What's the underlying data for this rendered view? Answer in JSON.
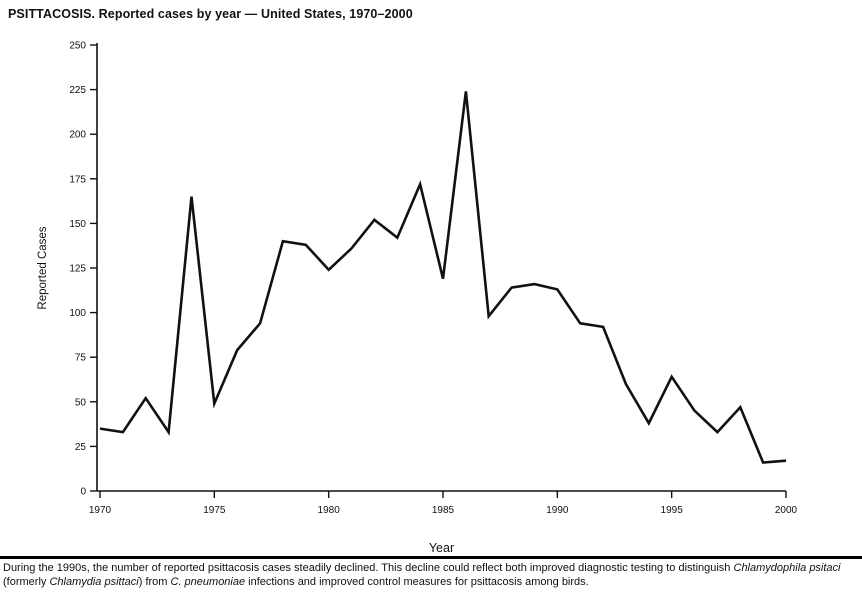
{
  "page": {
    "title": "PSITTACOSIS. Reported cases by year — United States, 1970–2000"
  },
  "chart_data": {
    "type": "line",
    "title": "PSITTACOSIS. Reported cases by year — United States, 1970–2000",
    "xlabel": "Year",
    "ylabel": "Reported Cases",
    "x": [
      1970,
      1971,
      1972,
      1973,
      1974,
      1975,
      1976,
      1977,
      1978,
      1979,
      1980,
      1981,
      1982,
      1983,
      1984,
      1985,
      1986,
      1987,
      1988,
      1989,
      1990,
      1991,
      1992,
      1993,
      1994,
      1995,
      1996,
      1997,
      1998,
      1999,
      2000
    ],
    "values": [
      35,
      33,
      52,
      33,
      165,
      49,
      79,
      94,
      140,
      138,
      124,
      136,
      152,
      142,
      172,
      119,
      224,
      98,
      114,
      116,
      113,
      94,
      92,
      60,
      38,
      64,
      45,
      33,
      47,
      16,
      17
    ],
    "ylim": [
      0,
      250
    ],
    "ytick_interval": 25,
    "yticks": [
      0,
      25,
      50,
      75,
      100,
      125,
      150,
      175,
      200,
      225,
      250
    ],
    "xticks": [
      1970,
      1975,
      1980,
      1985,
      1990,
      1995,
      2000
    ],
    "grid": false,
    "legend": false,
    "line_color": "#111111",
    "axis_color": "#111111"
  },
  "caption": {
    "segments": [
      {
        "text": "During the 1990s, the number of reported psittacosis cases steadily declined. This decline could reflect both improved diagnostic testing to distinguish ",
        "italic": false
      },
      {
        "text": "Chlamydophila psitaci",
        "italic": true
      },
      {
        "text": " (formerly ",
        "italic": false
      },
      {
        "text": "Chlamydia psittaci",
        "italic": true
      },
      {
        "text": ") from ",
        "italic": false
      },
      {
        "text": "C. pneumoniae",
        "italic": true
      },
      {
        "text": " infections and improved control measures for psittacosis among birds.",
        "italic": false
      }
    ]
  }
}
